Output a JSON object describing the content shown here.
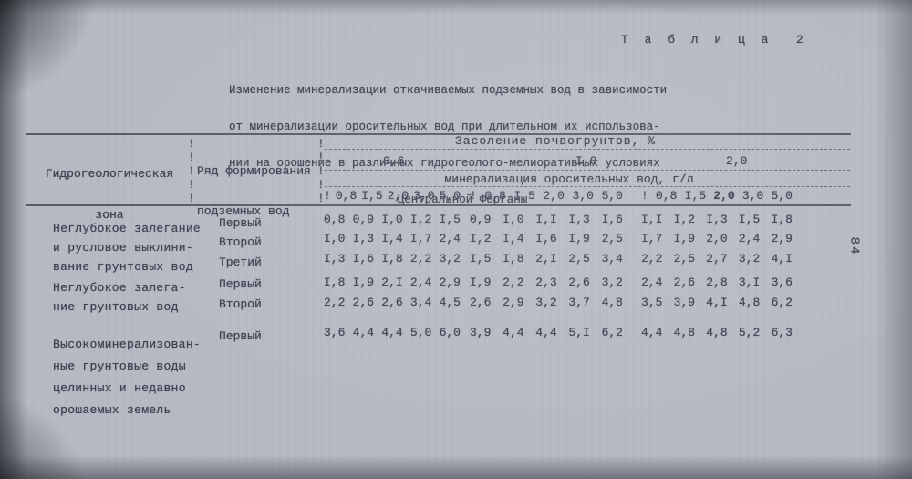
{
  "page": {
    "table_label": "Т а б л и ц а  2",
    "page_number": "84",
    "title_lines": [
      "Изменение минерализации откачиваемых подземных вод в зависимости",
      "от минерализации оросительных вод при длительном их использова-",
      "нии на орошение в различных гидрогеолого-мелиоративных условиях",
      "Центральной Ферганы"
    ]
  },
  "table": {
    "col_zone_header_lines": [
      "Гидрогеологическая",
      "зона"
    ],
    "col_series_header_lines": [
      "Ряд формирования",
      "подземных вод"
    ],
    "salinity_header": "Засоление почвогрунтов, %",
    "salinity_groups": [
      "0,6",
      "I,0",
      "2,0"
    ],
    "mineralization_header": "минерализация оросительных вод, г/л",
    "subcolumns": [
      "0,8",
      "I,5",
      "2,0",
      "3,0",
      "5,0"
    ],
    "separator_glyph": "!",
    "zones": [
      {
        "name_lines": [
          "Неглубокое залегание",
          "и русловое выклини-",
          "вание грунтовых вод"
        ],
        "rows": [
          {
            "series": "Первый",
            "groups": [
              [
                "0,8",
                "0,9",
                "I,0",
                "I,2",
                "I,5"
              ],
              [
                "0,9",
                "I,0",
                "I,I",
                "I,3",
                "I,6"
              ],
              [
                "I,I",
                "I,2",
                "I,3",
                "I,5",
                "I,8"
              ]
            ]
          },
          {
            "series": "Второй",
            "groups": [
              [
                "I,0",
                "I,3",
                "I,4",
                "I,7",
                "2,4"
              ],
              [
                "I,2",
                "I,4",
                "I,6",
                "I,9",
                "2,5"
              ],
              [
                "I,7",
                "I,9",
                "2,0",
                "2,4",
                "2,9"
              ]
            ]
          },
          {
            "series": "Третий",
            "groups": [
              [
                "I,3",
                "I,6",
                "I,8",
                "2,2",
                "3,2"
              ],
              [
                "I,5",
                "I,8",
                "2,I",
                "2,5",
                "3,4"
              ],
              [
                "2,2",
                "2,5",
                "2,7",
                "3,2",
                "4,I"
              ]
            ]
          }
        ]
      },
      {
        "name_lines": [
          "Неглубокое залега-",
          "ние грунтовых вод"
        ],
        "rows": [
          {
            "series": "Первый",
            "groups": [
              [
                "I,8",
                "I,9",
                "2,I",
                "2,4",
                "2,9"
              ],
              [
                "I,9",
                "2,2",
                "2,3",
                "2,6",
                "3,2"
              ],
              [
                "2,4",
                "2,6",
                "2,8",
                "3,I",
                "3,6"
              ]
            ]
          },
          {
            "series": "Второй",
            "groups": [
              [
                "2,2",
                "2,6",
                "2,6",
                "3,4",
                "4,5"
              ],
              [
                "2,6",
                "2,9",
                "3,2",
                "3,7",
                "4,8"
              ],
              [
                "3,5",
                "3,9",
                "4,I",
                "4,8",
                "6,2"
              ]
            ]
          }
        ]
      },
      {
        "name_lines": [
          "Высокоминерализован-",
          "ные грунтовые воды",
          "целинных и недавно",
          "орошаемых земель"
        ],
        "rows": [
          {
            "series": "Первый",
            "groups": [
              [
                "3,6",
                "4,4",
                "4,4",
                "5,0",
                "6,0"
              ],
              [
                "3,9",
                "4,4",
                "4,4",
                "5,I",
                "6,2"
              ],
              [
                "4,4",
                "4,8",
                "4,8",
                "5,2",
                "6,3"
              ]
            ]
          }
        ]
      }
    ]
  }
}
